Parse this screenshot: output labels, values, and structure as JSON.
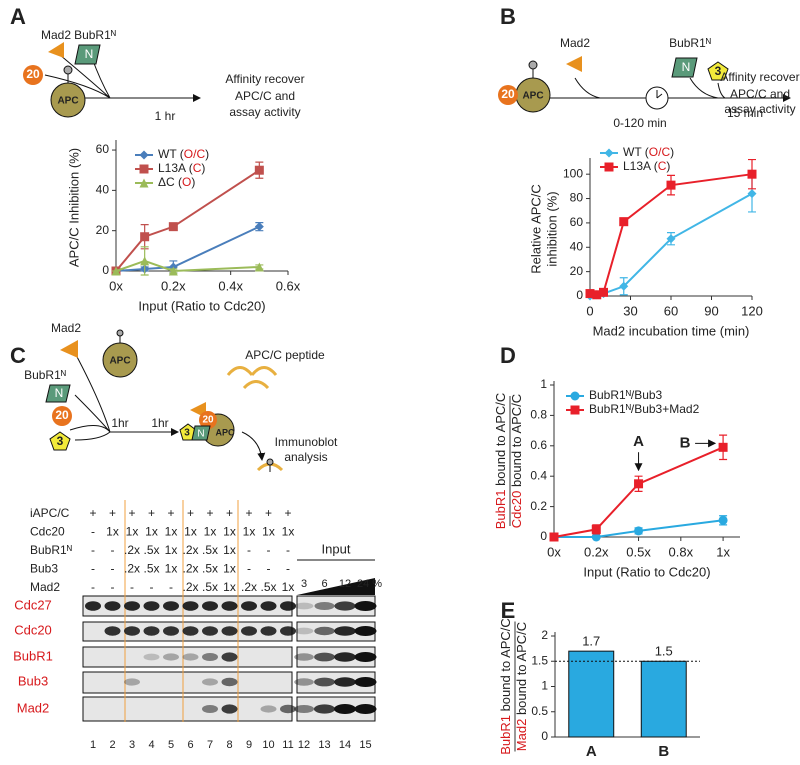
{
  "panel_labels": [
    "A",
    "B",
    "C",
    "D",
    "E"
  ],
  "diagram_a": [
    "20",
    "Mad2",
    "BubR1ᴺ",
    "N",
    "APC",
    "1 hr",
    "Affinity recover",
    "APC/C and",
    "assay activity"
  ],
  "diagram_b": [
    "Mad2",
    "BubR1ᴺ",
    "N",
    "3",
    "20",
    "APC",
    "0-120 min",
    "15 min",
    "Affinity recover",
    "APC/C and",
    "assay activity"
  ],
  "diagram_c": [
    "Mad2",
    "APC",
    "BubR1ᴺ",
    "N",
    "20",
    "3",
    "1hr",
    "1hr",
    "APC/C peptide",
    "3",
    "N",
    "20",
    "APC",
    "Immunoblot",
    "analysis"
  ],
  "blot": {
    "conditions": [
      {
        "label": "iAPC/C",
        "lanes": [
          "+",
          "+",
          "+",
          "+",
          "+",
          "+",
          "+",
          "+",
          "+",
          "+",
          "+"
        ]
      },
      {
        "label": "Cdc20",
        "lanes": [
          "-",
          "1x",
          "1x",
          "1x",
          "1x",
          "1x",
          "1x",
          "1x",
          "1x",
          "1x",
          "1x"
        ]
      },
      {
        "label": "BubR1ᴺ",
        "lanes": [
          "-",
          "-",
          ".2x",
          ".5x",
          "1x",
          ".2x",
          ".5x",
          "1x",
          "-",
          "-",
          "-"
        ]
      },
      {
        "label": "Bub3",
        "lanes": [
          "-",
          "-",
          ".2x",
          ".5x",
          "1x",
          ".2x",
          ".5x",
          "1x",
          "-",
          "-",
          "-"
        ]
      },
      {
        "label": "Mad2",
        "lanes": [
          "-",
          "-",
          "-",
          "-",
          "-",
          ".2x",
          ".5x",
          "1x",
          ".2x",
          ".5x",
          "1x"
        ]
      }
    ],
    "input_label": "Input",
    "input_amounts": [
      "3",
      "6",
      "12",
      "24 %"
    ],
    "proteins": [
      "Cdc27",
      "Cdc20",
      "BubR1",
      "Bub3",
      "Mad2"
    ],
    "lanes": [
      1,
      2,
      3,
      4,
      5,
      6,
      7,
      8,
      9,
      10,
      11,
      12,
      13,
      14,
      15
    ]
  },
  "chart_data": [
    {
      "type": "line",
      "x_label": "Input (Ratio to Cdc20)",
      "y_label": [
        "APC/C Inhibition (%)"
      ],
      "xlim": [
        0,
        0.6
      ],
      "xticks": [
        {
          "value": 0,
          "label": "0x"
        },
        {
          "value": 0.2,
          "label": "0.2x"
        },
        {
          "value": 0.4,
          "label": "0.4x"
        },
        {
          "value": 0.6,
          "label": "0.6x"
        }
      ],
      "ylim": [
        0,
        63
      ],
      "yticks": [
        0,
        20,
        40,
        60
      ],
      "series": [
        {
          "name": "WT (O/C)",
          "color": "#4a7ebb",
          "marker": "diamond",
          "x": [
            0,
            0.1,
            0.2,
            0.5
          ],
          "values": [
            0,
            1,
            2,
            22
          ],
          "err": [
            0,
            1,
            3,
            2
          ]
        },
        {
          "name": "L13A (C)",
          "color": "#c0504d",
          "marker": "square",
          "x": [
            0,
            0.1,
            0.2,
            0.5
          ],
          "values": [
            0,
            17,
            22,
            50
          ],
          "err": [
            0,
            6,
            1,
            4
          ]
        },
        {
          "name": "ΔC (O)",
          "color": "#9bbb59",
          "marker": "triangle",
          "x": [
            0,
            0.1,
            0.2,
            0.5
          ],
          "values": [
            0,
            5,
            0,
            2
          ],
          "err": [
            0,
            7,
            1,
            1
          ]
        }
      ]
    },
    {
      "type": "line",
      "x_label": "Mad2 incubation time (min)",
      "y_label": [
        "Relative APC/C",
        "inhibition (%)"
      ],
      "xlim": [
        0,
        120
      ],
      "xticks": [
        0,
        30,
        60,
        90,
        120
      ],
      "ylim": [
        0,
        110
      ],
      "yticks": [
        0,
        20,
        40,
        60,
        80,
        100
      ],
      "series": [
        {
          "name": "WT (O/C)",
          "color": "#41b6e6",
          "marker": "diamond",
          "x": [
            0,
            5,
            10,
            25,
            60,
            120
          ],
          "values": [
            0,
            1,
            2,
            8,
            47,
            84
          ],
          "err": [
            0,
            1,
            1,
            7,
            5,
            15
          ]
        },
        {
          "name": "L13A (C)",
          "color": "#e8202a",
          "marker": "square",
          "x": [
            0,
            5,
            10,
            25,
            60,
            120
          ],
          "values": [
            2,
            1,
            3,
            61,
            91,
            100
          ],
          "err": [
            0,
            1,
            1,
            3,
            8,
            12
          ]
        }
      ]
    },
    {
      "type": "line",
      "x_label": "Input (Ratio to Cdc20)",
      "y_label": [
        "BubR1 bound to APC/C",
        "Cdc20 bound to APC/C"
      ],
      "xlim": [
        0,
        1.1
      ],
      "xticks": [
        {
          "value": 0,
          "label": "0x"
        },
        {
          "value": 0.25,
          "label": "0.2x"
        },
        {
          "value": 0.5,
          "label": "0.5x"
        },
        {
          "value": 0.75,
          "label": "0.8x"
        },
        {
          "value": 1,
          "label": "1x"
        }
      ],
      "ylim": [
        0,
        1
      ],
      "yticks": [
        0,
        0.2,
        0.4,
        0.6,
        0.8,
        1
      ],
      "annotations": [
        "A",
        "B"
      ],
      "series": [
        {
          "name": "BubR1ᴺ/Bub3",
          "color": "#29a9e0",
          "marker": "circle",
          "x": [
            0,
            0.25,
            0.5,
            1
          ],
          "values": [
            0,
            0,
            0.04,
            0.11
          ],
          "err": [
            0,
            0,
            0.02,
            0.03
          ]
        },
        {
          "name": "BubR1ᴺ/Bub3+Mad2",
          "color": "#e8202a",
          "marker": "square",
          "x": [
            0,
            0.25,
            0.5,
            1
          ],
          "values": [
            0,
            0.05,
            0.35,
            0.59
          ],
          "err": [
            0,
            0.03,
            0.05,
            0.08
          ]
        }
      ]
    },
    {
      "type": "bar",
      "y_label": [
        "BubR1 bound to APC/C",
        "Mad2 bound to APC/C"
      ],
      "categories": [
        "A",
        "B"
      ],
      "values": [
        1.7,
        1.5
      ],
      "color": "#29a9e0",
      "ylim": [
        0,
        2
      ],
      "yticks": [
        0,
        0.5,
        1,
        1.5,
        2
      ],
      "reference_line": 1.5
    }
  ]
}
